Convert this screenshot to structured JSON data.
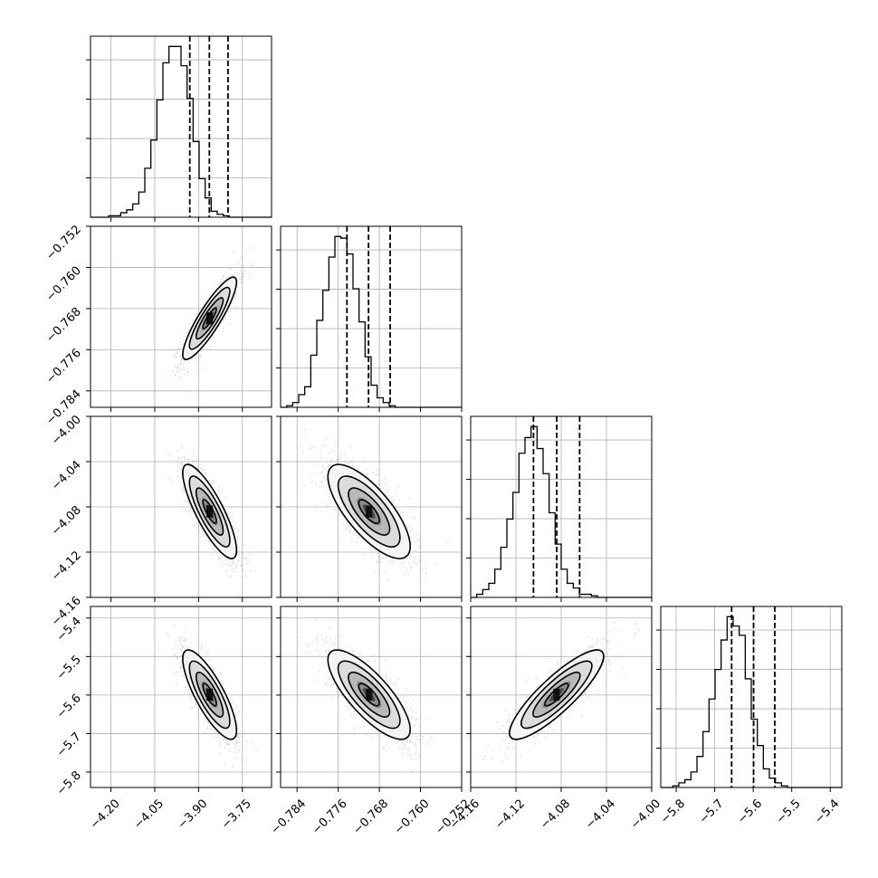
{
  "chart_data": {
    "type": "corner",
    "grid": true,
    "colors": {
      "line": "#000000",
      "grid": "#b0b0b0",
      "scatter": "#808080"
    },
    "params": [
      {
        "range": [
          -4.27,
          -3.65
        ],
        "ticks": [
          -4.2,
          -4.05,
          -3.9,
          -3.75
        ],
        "tick_labels": [
          "−4.20",
          "−4.05",
          "−3.90",
          "−3.75"
        ],
        "quantiles": [
          -3.93,
          -3.863,
          -3.799
        ]
      },
      {
        "range": [
          -0.7872,
          -0.752
        ],
        "ticks": [
          -0.784,
          -0.776,
          -0.768,
          -0.76,
          -0.752
        ],
        "tick_labels": [
          "−0.784",
          "−0.776",
          "−0.768",
          "−0.760",
          "−0.752"
        ],
        "quantiles": [
          -0.7743,
          -0.7701,
          -0.7659
        ]
      },
      {
        "range": [
          -4.16,
          -4.0
        ],
        "ticks": [
          -4.16,
          -4.12,
          -4.08,
          -4.04,
          -4.0
        ],
        "tick_labels": [
          "−4.16",
          "−4.12",
          "−4.08",
          "−4.04",
          "−4.00"
        ],
        "quantiles": [
          -4.1045,
          -4.0839,
          -4.0637
        ]
      },
      {
        "range": [
          -5.84,
          -5.37
        ],
        "ticks": [
          -5.8,
          -5.7,
          -5.6,
          -5.5,
          -5.4
        ],
        "tick_labels": [
          "−5.8",
          "−5.7",
          "−5.6",
          "−5.5",
          "−5.4"
        ],
        "quantiles": [
          -5.656,
          -5.599,
          -5.544
        ]
      }
    ],
    "histograms": [
      {
        "param": 0,
        "edges": [
          -4.27,
          -3.65
        ],
        "counts": [
          0,
          0,
          0,
          1,
          1,
          3,
          5,
          9,
          17,
          33,
          52,
          79,
          104,
          115,
          115,
          102,
          80,
          51,
          26,
          13,
          4,
          2,
          1,
          0,
          0,
          0,
          0,
          0,
          0,
          0
        ]
      },
      {
        "param": 1,
        "edges": [
          -0.7872,
          -0.752
        ],
        "counts": [
          0,
          1,
          3,
          8,
          13,
          33,
          55,
          74,
          95,
          108,
          107,
          97,
          75,
          54,
          32,
          14,
          6,
          3,
          1,
          0,
          0,
          0,
          0,
          0,
          0,
          0,
          0,
          0,
          0,
          0
        ]
      },
      {
        "param": 2,
        "edges": [
          -4.16,
          -4.0
        ],
        "counts": [
          0,
          2,
          5,
          9,
          18,
          32,
          50,
          67,
          92,
          102,
          109,
          95,
          79,
          54,
          34,
          18,
          9,
          6,
          2,
          2,
          1,
          0,
          0,
          0,
          0,
          0,
          0,
          0,
          0,
          0
        ]
      },
      {
        "param": 3,
        "edges": [
          -5.84,
          -5.37
        ],
        "counts": [
          0,
          0,
          1,
          3,
          5,
          10,
          20,
          36,
          57,
          76,
          95,
          110,
          104,
          98,
          70,
          44,
          27,
          12,
          6,
          3,
          1,
          0,
          0,
          0,
          0,
          0,
          0,
          0,
          0,
          0
        ]
      }
    ],
    "pairs": [
      {
        "x": 0,
        "y": 1,
        "center": [
          -3.862,
          -0.7699
        ],
        "sigma": [
          0.046,
          0.004
        ],
        "rho": 0.88
      },
      {
        "x": 0,
        "y": 2,
        "center": [
          -3.862,
          -4.0841
        ],
        "sigma": [
          0.046,
          0.0208
        ],
        "rho": -0.82
      },
      {
        "x": 1,
        "y": 2,
        "center": [
          -0.77,
          -4.0841
        ],
        "sigma": [
          0.004,
          0.0208
        ],
        "rho": -0.74
      },
      {
        "x": 0,
        "y": 3,
        "center": [
          -3.862,
          -5.599
        ],
        "sigma": [
          0.046,
          0.058
        ],
        "rho": -0.8
      },
      {
        "x": 1,
        "y": 3,
        "center": [
          -0.77,
          -5.599
        ],
        "sigma": [
          0.004,
          0.058
        ],
        "rho": -0.78
      },
      {
        "x": 2,
        "y": 3,
        "center": [
          -4.0841,
          -5.599
        ],
        "sigma": [
          0.0208,
          0.058
        ],
        "rho": 0.86
      }
    ]
  }
}
